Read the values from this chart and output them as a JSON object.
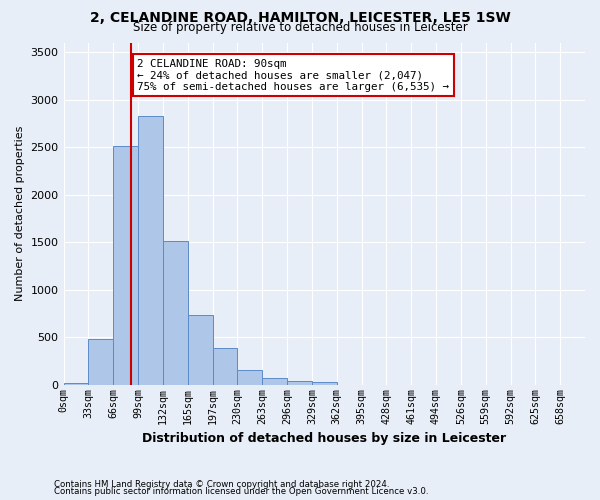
{
  "title": "2, CELANDINE ROAD, HAMILTON, LEICESTER, LE5 1SW",
  "subtitle": "Size of property relative to detached houses in Leicester",
  "xlabel": "Distribution of detached houses by size in Leicester",
  "ylabel": "Number of detached properties",
  "footnote1": "Contains HM Land Registry data © Crown copyright and database right 2024.",
  "footnote2": "Contains public sector information licensed under the Open Government Licence v3.0.",
  "bin_labels": [
    "0sqm",
    "33sqm",
    "66sqm",
    "99sqm",
    "132sqm",
    "165sqm",
    "197sqm",
    "230sqm",
    "263sqm",
    "296sqm",
    "329sqm",
    "362sqm",
    "395sqm",
    "428sqm",
    "461sqm",
    "494sqm",
    "526sqm",
    "559sqm",
    "592sqm",
    "625sqm",
    "658sqm"
  ],
  "bar_values": [
    20,
    480,
    2510,
    2830,
    1510,
    740,
    390,
    155,
    75,
    45,
    35,
    0,
    0,
    0,
    0,
    0,
    0,
    0,
    0,
    0,
    0
  ],
  "bar_color": "#aec6e8",
  "bar_edge_color": "#5b8bc9",
  "property_line_x": 90,
  "property_line_color": "#cc0000",
  "annotation_title": "2 CELANDINE ROAD: 90sqm",
  "annotation_line1": "← 24% of detached houses are smaller (2,047)",
  "annotation_line2": "75% of semi-detached houses are larger (6,535) →",
  "annotation_box_color": "#ffffff",
  "annotation_box_edge": "#cc0000",
  "ylim": [
    0,
    3600
  ],
  "xlim_min": 0,
  "xlim_max": 693,
  "bin_width": 33,
  "background_color": "#e8eef7",
  "plot_bg_color": "#e8eef7",
  "grid_color": "#ffffff"
}
